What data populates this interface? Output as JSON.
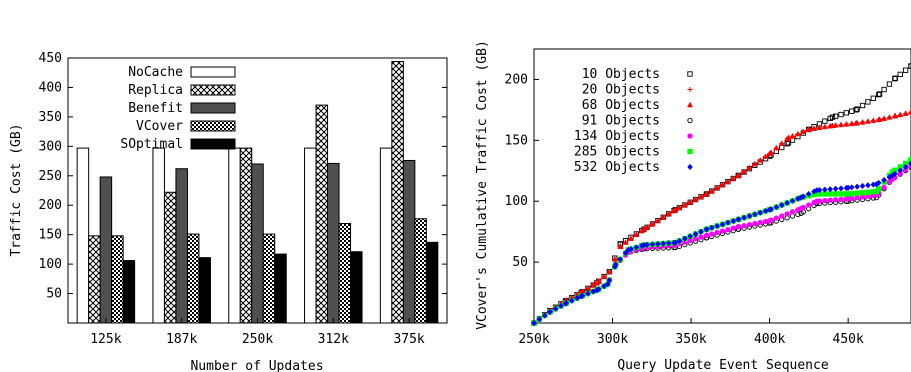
{
  "chart_data": [
    {
      "type": "bar",
      "title": "",
      "xlabel": "Number of Updates",
      "ylabel": "Traffic Cost (GB)",
      "categories": [
        "125k",
        "187k",
        "250k",
        "312k",
        "375k"
      ],
      "ylim": [
        0,
        450
      ],
      "yticks": [
        50,
        100,
        150,
        200,
        250,
        300,
        350,
        400,
        450
      ],
      "legend_position": "top-left",
      "series": [
        {
          "name": "NoCache",
          "pattern": "white",
          "values": [
            297,
            297,
            297,
            297,
            297
          ]
        },
        {
          "name": "Replica",
          "pattern": "crosshatch",
          "values": [
            148,
            222,
            297,
            370,
            444
          ]
        },
        {
          "name": "Benefit",
          "pattern": "darkgray",
          "values": [
            248,
            262,
            270,
            271,
            276
          ]
        },
        {
          "name": "VCover",
          "pattern": "checker",
          "values": [
            148,
            151,
            151,
            169,
            177
          ]
        },
        {
          "name": "SOptimal",
          "pattern": "black",
          "values": [
            106,
            111,
            117,
            121,
            137
          ]
        }
      ]
    },
    {
      "type": "scatter",
      "title": "",
      "xlabel": "Query Update Event Sequence",
      "ylabel": "VCover's Cumulative Traffic Cost (GB)",
      "xlim": [
        250000,
        490000
      ],
      "ylim": [
        0,
        225
      ],
      "xticks": [
        "250k",
        "300k",
        "350k",
        "400k",
        "450k"
      ],
      "xtick_values": [
        250000,
        300000,
        350000,
        400000,
        450000
      ],
      "yticks": [
        50,
        100,
        150,
        200
      ],
      "legend_position": "top-left",
      "series": [
        {
          "name": "10 Objects",
          "marker": "square",
          "color": "#000000",
          "x": [
            250000,
            260000,
            270000,
            280000,
            290000,
            298000,
            305000,
            320000,
            340000,
            360000,
            380000,
            400000,
            412000,
            425000,
            440000,
            455000,
            470000,
            480000,
            490000
          ],
          "y": [
            0,
            10,
            18,
            25,
            33,
            42,
            65,
            77,
            93,
            106,
            121,
            137,
            148,
            159,
            169,
            175,
            188,
            201,
            211
          ]
        },
        {
          "name": "20 Objects",
          "marker": "plus",
          "color": "#ff0000",
          "x": [
            250000,
            260000,
            270000,
            280000,
            290000,
            298000,
            305000,
            320000,
            340000,
            360000,
            380000,
            400000,
            412000,
            425000,
            440000,
            455000,
            470000,
            480000,
            490000
          ],
          "y": [
            0,
            10,
            18,
            25,
            33,
            42,
            63,
            77,
            93,
            106,
            121,
            139,
            152,
            159,
            162,
            164,
            167,
            170,
            173
          ]
        },
        {
          "name": "68 Objects",
          "marker": "triangle",
          "color": "#ff0000",
          "x": [
            250000,
            260000,
            270000,
            280000,
            290000,
            298000,
            305000,
            320000,
            340000,
            360000,
            380000,
            400000,
            412000,
            425000,
            440000,
            455000,
            470000,
            480000,
            490000
          ],
          "y": [
            0,
            10,
            18,
            25,
            33,
            42,
            63,
            77,
            93,
            106,
            121,
            139,
            152,
            159,
            162,
            164,
            167,
            170,
            173
          ]
        },
        {
          "name": "91 Objects",
          "marker": "circle",
          "color": "#000000",
          "x": [
            250000,
            260000,
            270000,
            280000,
            290000,
            297000,
            302000,
            310000,
            320000,
            340000,
            360000,
            380000,
            400000,
            420000,
            430000,
            450000,
            468000,
            478000,
            490000
          ],
          "y": [
            0,
            9,
            16,
            22,
            27,
            32,
            48,
            58,
            61,
            62,
            70,
            77,
            82,
            90,
            98,
            100,
            103,
            118,
            128
          ]
        },
        {
          "name": "134 Objects",
          "marker": "circle",
          "color": "#ff00ff",
          "x": [
            250000,
            260000,
            270000,
            280000,
            290000,
            297000,
            302000,
            310000,
            320000,
            340000,
            360000,
            380000,
            400000,
            420000,
            430000,
            450000,
            468000,
            478000,
            490000
          ],
          "y": [
            0,
            9,
            16,
            22,
            27,
            32,
            48,
            58,
            62,
            64,
            72,
            79,
            84,
            94,
            100,
            102,
            105,
            118,
            129
          ]
        },
        {
          "name": "285 Objects",
          "marker": "square",
          "color": "#00ff00",
          "x": [
            250000,
            260000,
            270000,
            280000,
            290000,
            297000,
            302000,
            310000,
            320000,
            340000,
            360000,
            380000,
            400000,
            420000,
            430000,
            450000,
            468000,
            478000,
            490000
          ],
          "y": [
            0,
            9,
            16,
            22,
            27,
            32,
            48,
            60,
            64,
            66,
            77,
            85,
            93,
            103,
            106,
            106,
            108,
            124,
            134
          ]
        },
        {
          "name": "532 Objects",
          "marker": "diamond",
          "color": "#0000ff",
          "x": [
            250000,
            260000,
            270000,
            280000,
            290000,
            297000,
            302000,
            310000,
            320000,
            340000,
            360000,
            380000,
            400000,
            420000,
            430000,
            450000,
            468000,
            478000,
            490000
          ],
          "y": [
            0,
            9,
            16,
            22,
            27,
            32,
            48,
            60,
            64,
            66,
            77,
            85,
            93,
            103,
            109,
            111,
            114,
            121,
            131
          ]
        }
      ]
    }
  ]
}
